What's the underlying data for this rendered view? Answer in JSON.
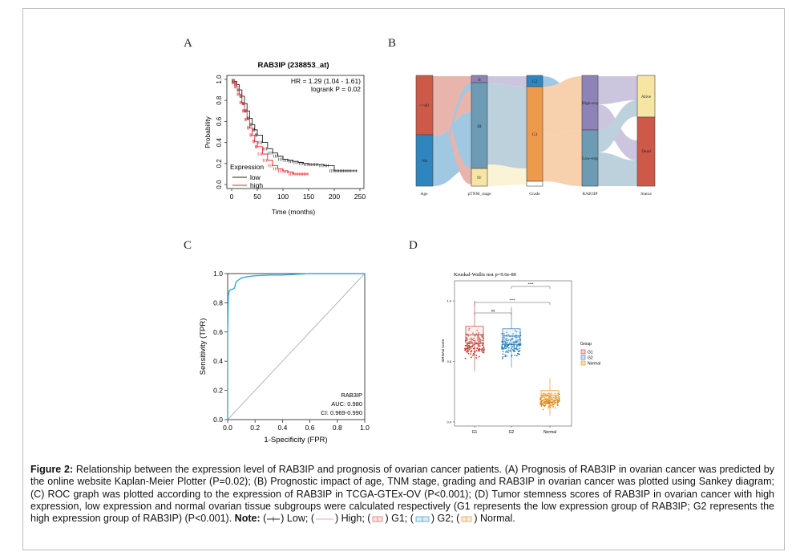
{
  "panels": {
    "a": "A",
    "b": "B",
    "c": "C",
    "d": "D"
  },
  "colors": {
    "km_low": "#222222",
    "km_high": "#e8262b",
    "roc_curve": "#3aa7d9",
    "g1": "#c0392b",
    "g2": "#2176b8",
    "normal": "#e08a1e",
    "sankey_red": "#cd5a48",
    "sankey_blue": "#2f86bf",
    "sankey_purple": "#8e83b7",
    "sankey_teal": "#6d9bb3",
    "sankey_yellow": "#f7e5a4",
    "sankey_orange": "#ee9a4d"
  },
  "chart_data": [
    {
      "type": "line",
      "title": "RAB3IP (238853_at)",
      "xlabel": "Time (months)",
      "ylabel": "Probability",
      "xlim": [
        0,
        250
      ],
      "ylim": [
        0,
        1
      ],
      "xticks": [
        "0",
        "50",
        "100",
        "150",
        "200",
        "250"
      ],
      "yticks": [
        "0.0",
        "0.2",
        "0.4",
        "0.6",
        "0.8",
        "1.0"
      ],
      "annotations": [
        "HR = 1.29 (1.04 - 1.61)",
        "logrank P = 0.02"
      ],
      "legend_title": "Expression",
      "legend_position": "bottom-left",
      "series": [
        {
          "name": "low",
          "x": [
            0,
            5,
            10,
            15,
            20,
            25,
            30,
            35,
            40,
            45,
            50,
            60,
            70,
            80,
            90,
            100,
            110,
            120,
            130,
            140,
            150,
            160,
            170,
            180,
            190,
            200,
            210,
            220,
            230,
            245
          ],
          "y": [
            1.0,
            0.98,
            0.95,
            0.9,
            0.84,
            0.77,
            0.7,
            0.63,
            0.57,
            0.52,
            0.47,
            0.4,
            0.34,
            0.3,
            0.27,
            0.24,
            0.23,
            0.22,
            0.21,
            0.2,
            0.19,
            0.19,
            0.19,
            0.18,
            0.18,
            0.13,
            0.13,
            0.13,
            0.13,
            0.13
          ]
        },
        {
          "name": "high",
          "x": [
            0,
            5,
            10,
            15,
            20,
            25,
            30,
            35,
            40,
            45,
            50,
            60,
            70,
            80,
            90,
            100,
            110,
            120,
            130,
            140,
            150
          ],
          "y": [
            1.0,
            0.97,
            0.93,
            0.86,
            0.78,
            0.7,
            0.62,
            0.54,
            0.47,
            0.41,
            0.36,
            0.29,
            0.23,
            0.18,
            0.15,
            0.13,
            0.12,
            0.1,
            0.1,
            0.1,
            0.1
          ]
        }
      ]
    },
    {
      "type": "sankey",
      "axes": [
        "Age",
        "pTNM_stage",
        "Grade",
        "RAB3IP",
        "Status"
      ],
      "nodes": [
        {
          "axis": "Age",
          "label": "<=60",
          "value": 0.55,
          "color": "sankey_red"
        },
        {
          "axis": "Age",
          "label": ">60",
          "value": 0.45,
          "color": "sankey_blue"
        },
        {
          "axis": "pTNM_stage",
          "label": "II",
          "value": 0.06,
          "color": "sankey_purple"
        },
        {
          "axis": "pTNM_stage",
          "label": "III",
          "value": 0.8,
          "color": "sankey_teal"
        },
        {
          "axis": "pTNM_stage",
          "label": "IV",
          "value": 0.14,
          "color": "sankey_yellow"
        },
        {
          "axis": "Grade",
          "label": "G2",
          "value": 0.12,
          "color": "sankey_blue"
        },
        {
          "axis": "Grade",
          "label": "G3",
          "value": 0.85,
          "color": "sankey_orange"
        },
        {
          "axis": "Grade",
          "label": "",
          "value": 0.03,
          "color": "#ffffff"
        },
        {
          "axis": "RAB3IP",
          "label": "High-exp",
          "value": 0.5,
          "color": "sankey_purple"
        },
        {
          "axis": "RAB3IP",
          "label": "Low-exp",
          "value": 0.5,
          "color": "sankey_teal"
        },
        {
          "axis": "Status",
          "label": "Alive",
          "value": 0.38,
          "color": "sankey_yellow"
        },
        {
          "axis": "Status",
          "label": "Dead",
          "value": 0.62,
          "color": "sankey_red"
        }
      ]
    },
    {
      "type": "line",
      "xlabel": "1-Specificity (FPR)",
      "ylabel": "Sensitivity (TPR)",
      "xlim": [
        0,
        1
      ],
      "ylim": [
        0,
        1
      ],
      "xticks": [
        "0.0",
        "0.2",
        "0.4",
        "0.6",
        "0.8",
        "1.0"
      ],
      "yticks": [
        "0.0",
        "0.2",
        "0.4",
        "0.6",
        "0.8",
        "1.0"
      ],
      "annotations": [
        "RAB3IP",
        "AUC: 0.980",
        "CI: 0.969-0.990"
      ],
      "series": [
        {
          "name": "RAB3IP",
          "x": [
            0.0,
            0.0,
            0.005,
            0.01,
            0.01,
            0.02,
            0.03,
            0.05,
            0.06,
            0.07,
            0.1,
            0.15,
            0.2,
            0.3,
            0.4,
            0.6,
            0.8,
            1.0
          ],
          "y": [
            0.0,
            0.55,
            0.85,
            0.87,
            0.88,
            0.89,
            0.89,
            0.9,
            0.94,
            0.95,
            0.97,
            0.98,
            0.985,
            0.99,
            0.99,
            1.0,
            1.0,
            1.0
          ]
        }
      ]
    },
    {
      "type": "scatter",
      "title": "Kruskal-Wallis test p=9.6e-80",
      "ylabel": "mRNAsi score",
      "categories": [
        "G1",
        "G2",
        "Normal"
      ],
      "yticks": [
        "0.0",
        "0.5",
        "1.0"
      ],
      "ylim": [
        0,
        1.1
      ],
      "legend_title": "Group",
      "legend_position": "right",
      "legend": [
        "G1",
        "G2",
        "Normal"
      ],
      "comparisons": [
        {
          "groups": [
            "G1",
            "G2"
          ],
          "label": "ns"
        },
        {
          "groups": [
            "G1",
            "Normal"
          ],
          "label": "****"
        },
        {
          "groups": [
            "G2",
            "Normal"
          ],
          "label": "****"
        }
      ],
      "boxes": [
        {
          "name": "G1",
          "min": 0.42,
          "q1": 0.65,
          "median": 0.72,
          "q3": 0.79,
          "max": 1.0
        },
        {
          "name": "G2",
          "min": 0.45,
          "q1": 0.64,
          "median": 0.71,
          "q3": 0.77,
          "max": 0.95
        },
        {
          "name": "Normal",
          "min": 0.05,
          "q1": 0.18,
          "median": 0.22,
          "q3": 0.26,
          "max": 0.36
        }
      ]
    }
  ],
  "sankey_labels": {
    "age_le60": "<=60",
    "age_gt60": ">60",
    "stage_ii": "II",
    "stage_iii": "III",
    "stage_iv": "IV",
    "grade_g2": "G2",
    "grade_g3": "G3",
    "high_exp": "High-exp",
    "low_exp": "Low-exp",
    "alive": "Alive",
    "dead": "Dead",
    "axis_age": "Age",
    "axis_stage": "pTNM_stage",
    "axis_grade": "Grade",
    "axis_rab": "RAB3IP",
    "axis_status": "Status"
  },
  "caption": {
    "lead": "Figure 2:",
    "body": " Relationship between the expression level of RAB3IP and prognosis of ovarian cancer patients. (A) Prognosis of RAB3IP in ovarian cancer was predicted by the online website Kaplan-Meier Plotter (P=0.02); (B) Prognostic impact of age, TNM stage, grading and RAB3IP in ovarian cancer was plotted using Sankey diagram; (C) ROC graph was plotted according to the expression of RAB3IP in TCGA-GTEx-OV (P<0.001); (D) Tumor stemness scores of RAB3IP in ovarian cancer with high expression, low expression and normal ovarian tissue subgroups were calculated respectively (G1 represents the low expression group of RAB3IP; G2 represents the high expression group of RAB3IP) (P<0.001). ",
    "note_label": "Note:",
    "low": " Low;  ",
    "high": " High;  ",
    "g1": " G1;  ",
    "g2": " G2;  ",
    "normal": " Normal."
  }
}
